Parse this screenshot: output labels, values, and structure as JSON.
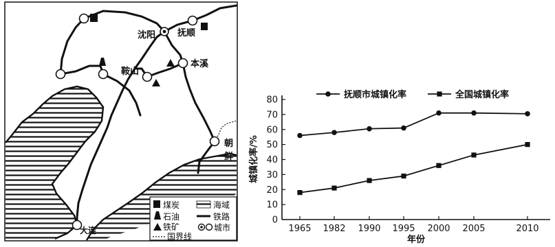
{
  "map": {
    "cities": {
      "shenyang": "沈阳",
      "fushun": "抚顺",
      "anshan": "鞍山",
      "benxi": "本溪",
      "dalian": "大连",
      "chaoxian": [
        "朝",
        "鲜"
      ]
    },
    "legend": {
      "coal": "煤炭",
      "oil": "石油",
      "iron": "铁矿",
      "sea": "海域",
      "railway": "铁路",
      "border": "国界线",
      "city": "城市"
    }
  },
  "chart_data": {
    "type": "line",
    "x": [
      "1965",
      "1982",
      "1990",
      "1995",
      "2000",
      "2005",
      "2010"
    ],
    "series": [
      {
        "name": "抚顺市城镇化率",
        "marker": "circle",
        "values": [
          56,
          58,
          60.5,
          61,
          71,
          71,
          70.5
        ]
      },
      {
        "name": "全国城镇化率",
        "marker": "square",
        "values": [
          18,
          21,
          26,
          29,
          36,
          43,
          50
        ]
      }
    ],
    "xlabel": "年份",
    "ylabel": "城镇化率/%",
    "ylim": [
      0,
      80
    ],
    "yticks": [
      "0",
      "10",
      "20",
      "30",
      "40",
      "50",
      "60",
      "70",
      "80"
    ],
    "legend_position": "top",
    "grid": false
  }
}
